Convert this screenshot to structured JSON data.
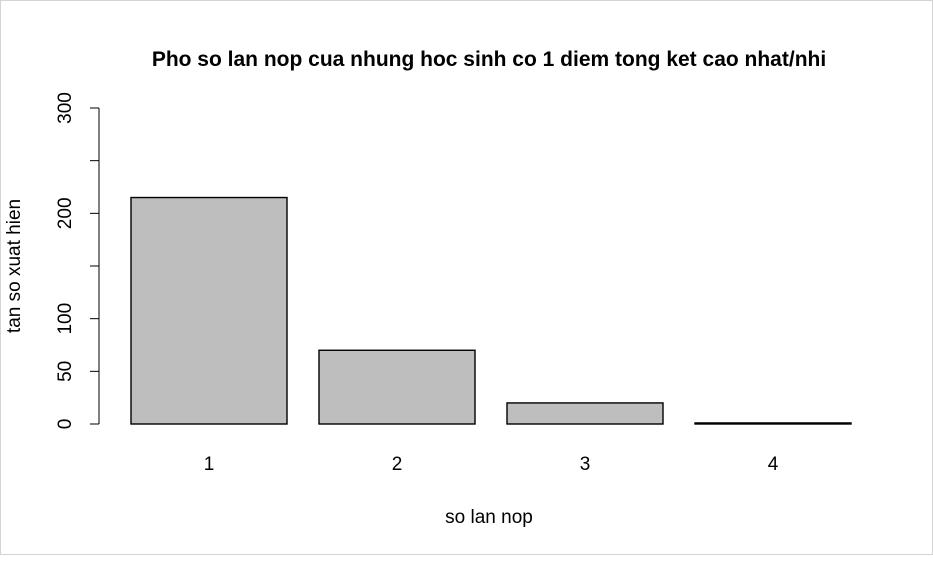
{
  "chart_data": {
    "type": "bar",
    "title": "Pho so lan nop cua nhung hoc sinh co 1 diem tong ket cao nhat/nhi",
    "xlabel": "so lan nop",
    "ylabel": "tan so xuat hien",
    "categories": [
      "1",
      "2",
      "3",
      "4"
    ],
    "values": [
      215,
      70,
      20,
      1
    ],
    "ylim": [
      0,
      300
    ],
    "yticks": [
      0,
      50,
      100,
      150,
      200,
      250,
      300
    ],
    "yticks_labeled": [
      "0",
      "50",
      "100",
      "",
      "200",
      "",
      "300"
    ],
    "grid": false,
    "legend": "none",
    "bar_color": "#bebebe",
    "border_color": "#000000"
  }
}
